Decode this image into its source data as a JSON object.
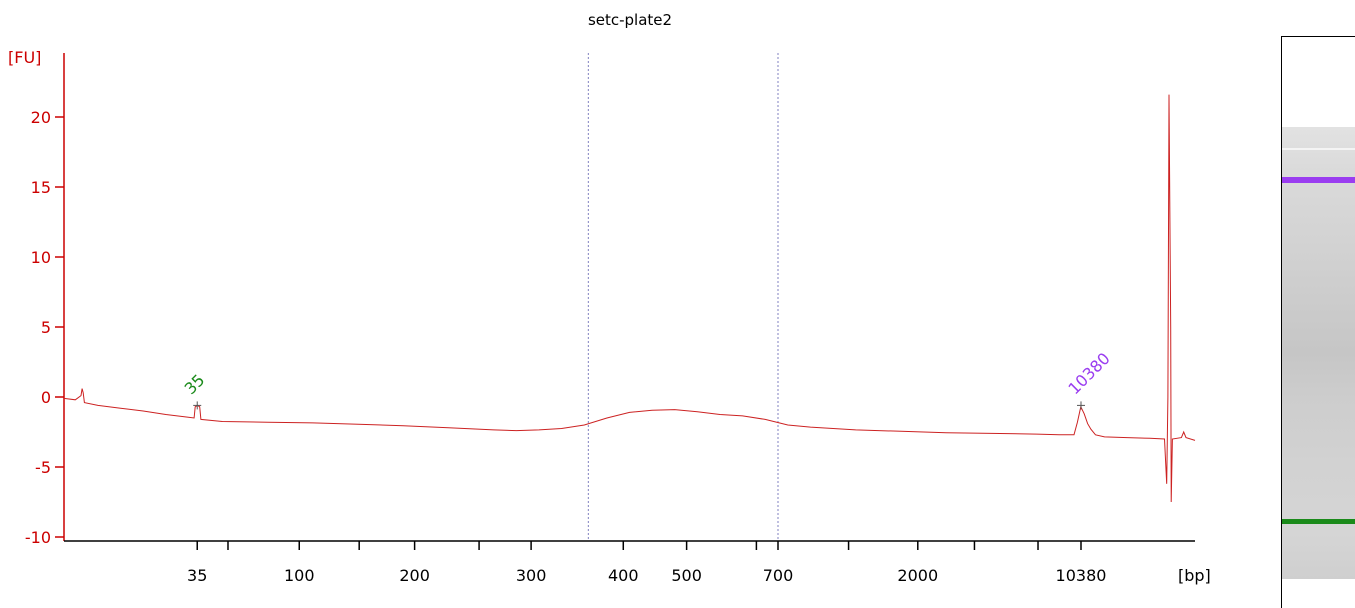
{
  "chart_data": {
    "type": "line",
    "title": "setc-plate2",
    "y_unit": "[FU]",
    "x_unit": "[bp]",
    "ylim": [
      -10,
      23
    ],
    "y_ticks": [
      20,
      15,
      10,
      5,
      0,
      -5,
      -10
    ],
    "x_tick_labels": [
      "35",
      "100",
      "200",
      "300",
      "400",
      "500",
      "700",
      "2000",
      "10380"
    ],
    "x_range": [
      0,
      100
    ],
    "x_ticks": [
      {
        "x": 11.78,
        "label": "35"
      },
      {
        "x": 14.5,
        "label": ""
      },
      {
        "x": 20.8,
        "label": "100"
      },
      {
        "x": 26.1,
        "label": ""
      },
      {
        "x": 31.0,
        "label": "200"
      },
      {
        "x": 36.7,
        "label": ""
      },
      {
        "x": 41.3,
        "label": "300"
      },
      {
        "x": 49.45,
        "label": "400"
      },
      {
        "x": 55.05,
        "label": "500"
      },
      {
        "x": 61.22,
        "label": ""
      },
      {
        "x": 63.13,
        "label": "700"
      },
      {
        "x": 69.37,
        "label": ""
      },
      {
        "x": 75.49,
        "label": "2000"
      },
      {
        "x": 80.5,
        "label": ""
      },
      {
        "x": 86.12,
        "label": ""
      },
      {
        "x": 89.92,
        "label": "10380"
      }
    ],
    "region_markers": [
      46.36,
      63.13
    ],
    "peaks": [
      {
        "label": "35",
        "x": 11.78,
        "y": -0.6,
        "color": "#1a8a1a"
      },
      {
        "label": "10380",
        "x": 89.92,
        "y": -0.6,
        "color": "#9a3df0"
      }
    ],
    "series": [
      {
        "color": "#cc2222",
        "points": [
          [
            0,
            -0.1
          ],
          [
            1,
            -0.2
          ],
          [
            1.5,
            0.1
          ],
          [
            1.6,
            0.6
          ],
          [
            1.7,
            0.3
          ],
          [
            1.8,
            -0.4
          ],
          [
            3,
            -0.6
          ],
          [
            5,
            -0.8
          ],
          [
            7,
            -1.0
          ],
          [
            9,
            -1.25
          ],
          [
            11,
            -1.45
          ],
          [
            11.5,
            -1.5
          ],
          [
            11.6,
            -0.7
          ],
          [
            11.8,
            -0.6
          ],
          [
            12.0,
            -0.7
          ],
          [
            12.1,
            -1.6
          ],
          [
            14,
            -1.75
          ],
          [
            18,
            -1.8
          ],
          [
            22,
            -1.85
          ],
          [
            26,
            -1.95
          ],
          [
            30,
            -2.05
          ],
          [
            34,
            -2.2
          ],
          [
            38,
            -2.35
          ],
          [
            40,
            -2.4
          ],
          [
            42,
            -2.35
          ],
          [
            44,
            -2.25
          ],
          [
            46,
            -2.0
          ],
          [
            48,
            -1.5
          ],
          [
            50,
            -1.1
          ],
          [
            52,
            -0.95
          ],
          [
            54,
            -0.9
          ],
          [
            56,
            -1.05
          ],
          [
            58,
            -1.25
          ],
          [
            60,
            -1.35
          ],
          [
            62,
            -1.6
          ],
          [
            64,
            -2.0
          ],
          [
            66,
            -2.15
          ],
          [
            70,
            -2.35
          ],
          [
            74,
            -2.45
          ],
          [
            78,
            -2.55
          ],
          [
            82,
            -2.6
          ],
          [
            86,
            -2.65
          ],
          [
            88,
            -2.7
          ],
          [
            89.3,
            -2.7
          ],
          [
            89.6,
            -1.8
          ],
          [
            89.9,
            -0.7
          ],
          [
            90.2,
            -1.2
          ],
          [
            90.5,
            -1.9
          ],
          [
            90.8,
            -2.3
          ],
          [
            91.2,
            -2.7
          ],
          [
            92,
            -2.85
          ],
          [
            94,
            -2.9
          ],
          [
            96,
            -2.95
          ],
          [
            97.3,
            -3.0
          ],
          [
            97.5,
            -6.2
          ],
          [
            97.6,
            0
          ],
          [
            97.7,
            21.6
          ],
          [
            97.85,
            5
          ],
          [
            97.9,
            -7.5
          ],
          [
            98.0,
            -3.0
          ],
          [
            98.8,
            -2.9
          ],
          [
            99.0,
            -2.5
          ],
          [
            99.2,
            -2.9
          ],
          [
            100,
            -3.1
          ]
        ]
      }
    ]
  },
  "gel": {
    "upper_marker_color": "#9a3df0",
    "lower_marker_color": "#1a8a1a"
  }
}
